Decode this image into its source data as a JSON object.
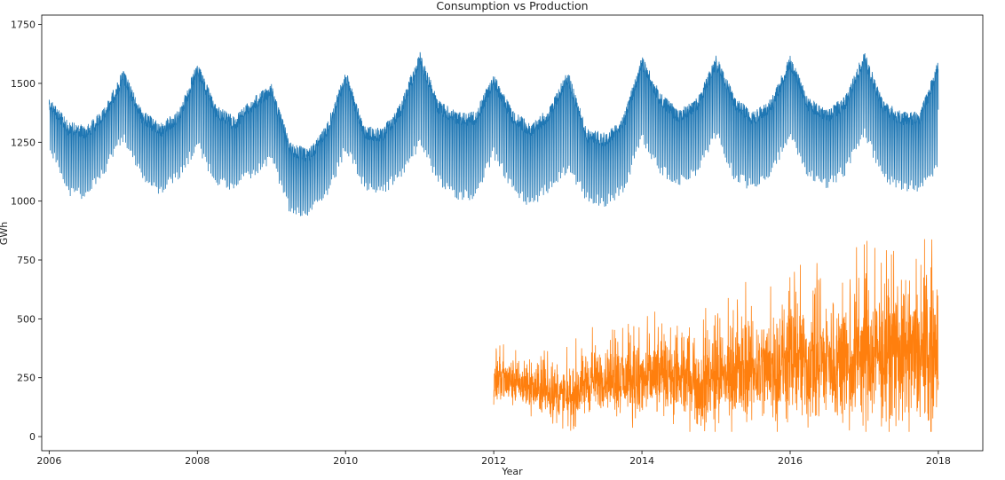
{
  "chart_data": {
    "type": "line",
    "title": "Consumption vs Production",
    "xlabel": "Year",
    "ylabel": "GWh",
    "xlim": [
      2005.9,
      2018.6
    ],
    "ylim": [
      -60,
      1790
    ],
    "xticks": [
      2006,
      2008,
      2010,
      2012,
      2014,
      2016,
      2018
    ],
    "yticks": [
      0,
      250,
      500,
      750,
      1000,
      1250,
      1500,
      1750
    ],
    "grid": false,
    "series": [
      {
        "color": "#1f77b4",
        "line_width": 0.8,
        "points_per_year": 365,
        "x": [
          2006.0,
          2006.25,
          2006.5,
          2006.75,
          2007.0,
          2007.25,
          2007.5,
          2007.75,
          2008.0,
          2008.25,
          2008.5,
          2008.75,
          2009.0,
          2009.25,
          2009.5,
          2009.75,
          2010.0,
          2010.25,
          2010.5,
          2010.75,
          2011.0,
          2011.25,
          2011.5,
          2011.75,
          2012.0,
          2012.25,
          2012.5,
          2012.75,
          2013.0,
          2013.25,
          2013.5,
          2013.75,
          2014.0,
          2014.25,
          2014.5,
          2014.75,
          2015.0,
          2015.25,
          2015.5,
          2015.75,
          2016.0,
          2016.25,
          2016.5,
          2016.75,
          2017.0,
          2017.25,
          2017.5,
          2017.75,
          2018.0
        ],
        "weekday_high": [
          1450,
          1340,
          1320,
          1400,
          1560,
          1390,
          1330,
          1390,
          1590,
          1410,
          1360,
          1440,
          1500,
          1250,
          1220,
          1330,
          1560,
          1320,
          1310,
          1420,
          1640,
          1430,
          1380,
          1380,
          1540,
          1390,
          1330,
          1400,
          1560,
          1310,
          1290,
          1360,
          1620,
          1460,
          1390,
          1440,
          1620,
          1450,
          1380,
          1440,
          1620,
          1440,
          1390,
          1450,
          1640,
          1430,
          1380,
          1380,
          1600
        ],
        "weekend_low": [
          1220,
          1020,
          1000,
          1110,
          1250,
          1080,
          1020,
          1090,
          1220,
          1060,
          1040,
          1100,
          1150,
          940,
          920,
          1010,
          1200,
          1050,
          1020,
          1100,
          1220,
          1070,
          1000,
          1000,
          1180,
          1040,
          960,
          1040,
          1120,
          1000,
          970,
          1030,
          1250,
          1110,
          1060,
          1110,
          1260,
          1080,
          1040,
          1110,
          1260,
          1090,
          1050,
          1110,
          1280,
          1080,
          1040,
          1040,
          1120
        ]
      },
      {
        "color": "#ff7f0e",
        "line_width": 0.8,
        "points_per_year": 365,
        "x": [
          2012.0,
          2012.25,
          2012.5,
          2012.75,
          2013.0,
          2013.25,
          2013.5,
          2013.75,
          2014.0,
          2014.25,
          2014.5,
          2014.75,
          2015.0,
          2015.25,
          2015.5,
          2015.75,
          2016.0,
          2016.25,
          2016.5,
          2016.75,
          2017.0,
          2017.25,
          2017.5,
          2017.75,
          2018.0
        ],
        "base": [
          240,
          230,
          200,
          190,
          160,
          230,
          250,
          240,
          230,
          260,
          240,
          210,
          250,
          270,
          290,
          290,
          320,
          300,
          320,
          320,
          340,
          330,
          340,
          330,
          360
        ],
        "spread": [
          130,
          110,
          100,
          120,
          140,
          150,
          140,
          150,
          170,
          180,
          170,
          180,
          230,
          240,
          240,
          250,
          280,
          270,
          280,
          290,
          320,
          310,
          320,
          330,
          360
        ]
      }
    ]
  }
}
